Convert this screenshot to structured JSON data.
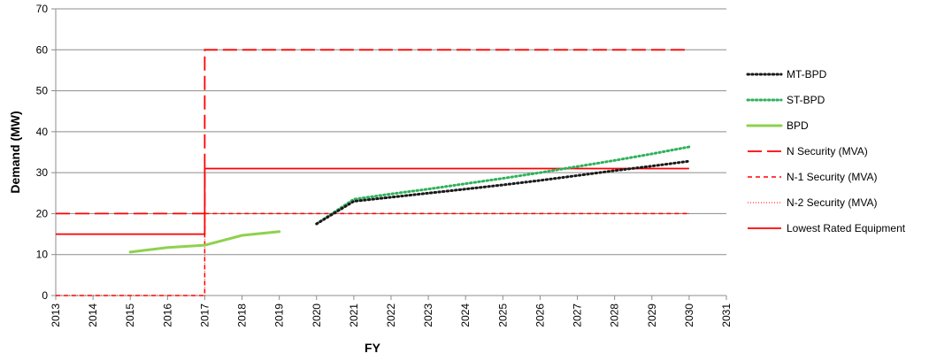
{
  "chart_data": {
    "type": "line",
    "title": "",
    "xlabel": "FY",
    "ylabel": "Demand (MW)",
    "xlim": [
      2013,
      2031
    ],
    "ylim": [
      0,
      70
    ],
    "xticks": [
      2013,
      2014,
      2015,
      2016,
      2017,
      2018,
      2019,
      2020,
      2021,
      2022,
      2023,
      2024,
      2025,
      2026,
      2027,
      2028,
      2029,
      2030,
      2031
    ],
    "yticks": [
      0,
      10,
      20,
      30,
      40,
      50,
      60,
      70
    ],
    "grid": "horizontal",
    "legend_position": "right",
    "series": [
      {
        "name": "MT-BPD",
        "color": "#1a1a1a",
        "style": "dotted",
        "points": [
          [
            2020,
            17.5
          ],
          [
            2021,
            23
          ],
          [
            2022,
            24
          ],
          [
            2023,
            25
          ],
          [
            2024,
            26
          ],
          [
            2025,
            27
          ],
          [
            2026,
            28.1
          ],
          [
            2027,
            29.3
          ],
          [
            2028,
            30.5
          ],
          [
            2029,
            31.6
          ],
          [
            2030,
            32.8
          ]
        ]
      },
      {
        "name": "ST-BPD",
        "color": "#2db25a",
        "style": "dotted",
        "points": [
          [
            2020,
            17.5
          ],
          [
            2021,
            23.5
          ],
          [
            2022,
            24.8
          ],
          [
            2023,
            26
          ],
          [
            2024,
            27.3
          ],
          [
            2025,
            28.6
          ],
          [
            2026,
            30
          ],
          [
            2027,
            31.5
          ],
          [
            2028,
            33
          ],
          [
            2029,
            34.6
          ],
          [
            2030,
            36.3
          ]
        ]
      },
      {
        "name": "BPD",
        "color": "#8fd14f",
        "style": "solid-thick",
        "points": [
          [
            2015,
            10.6
          ],
          [
            2016,
            11.7
          ],
          [
            2017,
            12.3
          ],
          [
            2018,
            14.7
          ],
          [
            2019,
            15.6
          ]
        ]
      },
      {
        "name": "N Security (MVA)",
        "color": "#ff0000",
        "style": "long-dash",
        "points": [
          [
            2013,
            20
          ],
          [
            2017,
            20
          ],
          [
            2017,
            60
          ],
          [
            2030,
            60
          ]
        ]
      },
      {
        "name": "N-1 Security (MVA)",
        "color": "#ff0000",
        "style": "dash",
        "points": [
          [
            2013,
            0
          ],
          [
            2017,
            0
          ],
          [
            2017,
            20
          ],
          [
            2030,
            20
          ]
        ]
      },
      {
        "name": "N-2 Security (MVA)",
        "color": "#ff0000",
        "style": "fine-dot",
        "points": [
          [
            2013,
            0
          ],
          [
            2017,
            0
          ],
          [
            2017,
            20
          ],
          [
            2030,
            20
          ]
        ]
      },
      {
        "name": "Lowest Rated Equipment",
        "color": "#ff0000",
        "style": "solid",
        "points": [
          [
            2013,
            15
          ],
          [
            2017,
            15
          ],
          [
            2017,
            31
          ],
          [
            2030,
            31
          ]
        ]
      }
    ]
  }
}
